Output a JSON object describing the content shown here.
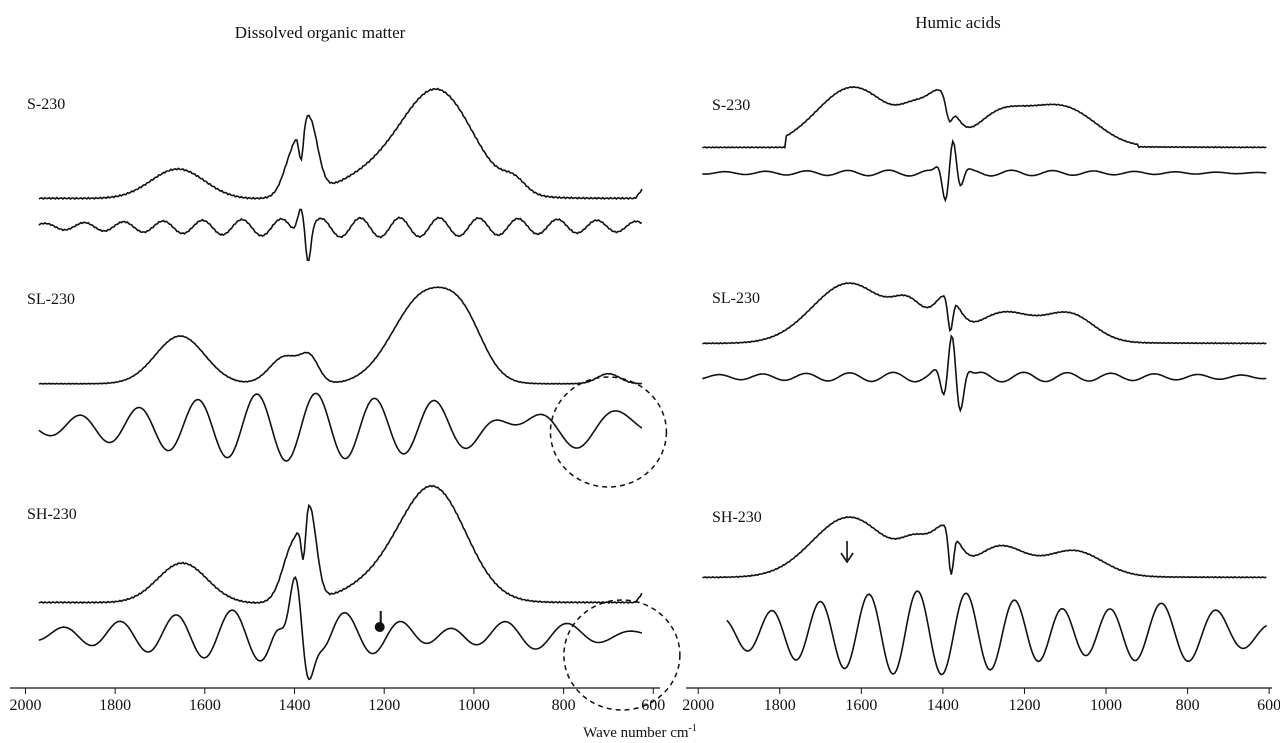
{
  "chart_data": [
    {
      "type": "line",
      "title": "Dissolved organic matter",
      "x_axis": {
        "ticks": [
          2000,
          1800,
          1600,
          1400,
          1200,
          1000,
          800,
          600
        ],
        "reversed": true
      },
      "samples": [
        {
          "label": "S-230",
          "curves": [
            "IR spectrum",
            "second derivative"
          ]
        },
        {
          "label": "SL-230",
          "curves": [
            "IR spectrum",
            "second derivative"
          ]
        },
        {
          "label": "SH-230",
          "curves": [
            "IR spectrum",
            "second derivative"
          ]
        }
      ],
      "annotations": [
        {
          "type": "dashed-circle",
          "sample": "SL-230",
          "center_x": 700
        },
        {
          "type": "dashed-circle",
          "sample": "SH-230",
          "center_x": 670
        },
        {
          "type": "pin-marker",
          "sample": "SH-230",
          "x": 1210
        }
      ]
    },
    {
      "type": "line",
      "title": "Humic acids",
      "x_axis": {
        "ticks": [
          2000,
          1800,
          1600,
          1400,
          1200,
          1000,
          800,
          600
        ],
        "reversed": true
      },
      "samples": [
        {
          "label": "S-230",
          "curves": [
            "IR spectrum",
            "second derivative"
          ]
        },
        {
          "label": "SL-230",
          "curves": [
            "IR spectrum",
            "second derivative"
          ]
        },
        {
          "label": "SH-230",
          "curves": [
            "IR spectrum",
            "second derivative"
          ]
        }
      ],
      "annotations": [
        {
          "type": "arrow",
          "sample": "SH-230",
          "x": 1635
        }
      ]
    }
  ],
  "shared_xlabel": "Wave number cm",
  "shared_xlabel_superscript": "-1"
}
